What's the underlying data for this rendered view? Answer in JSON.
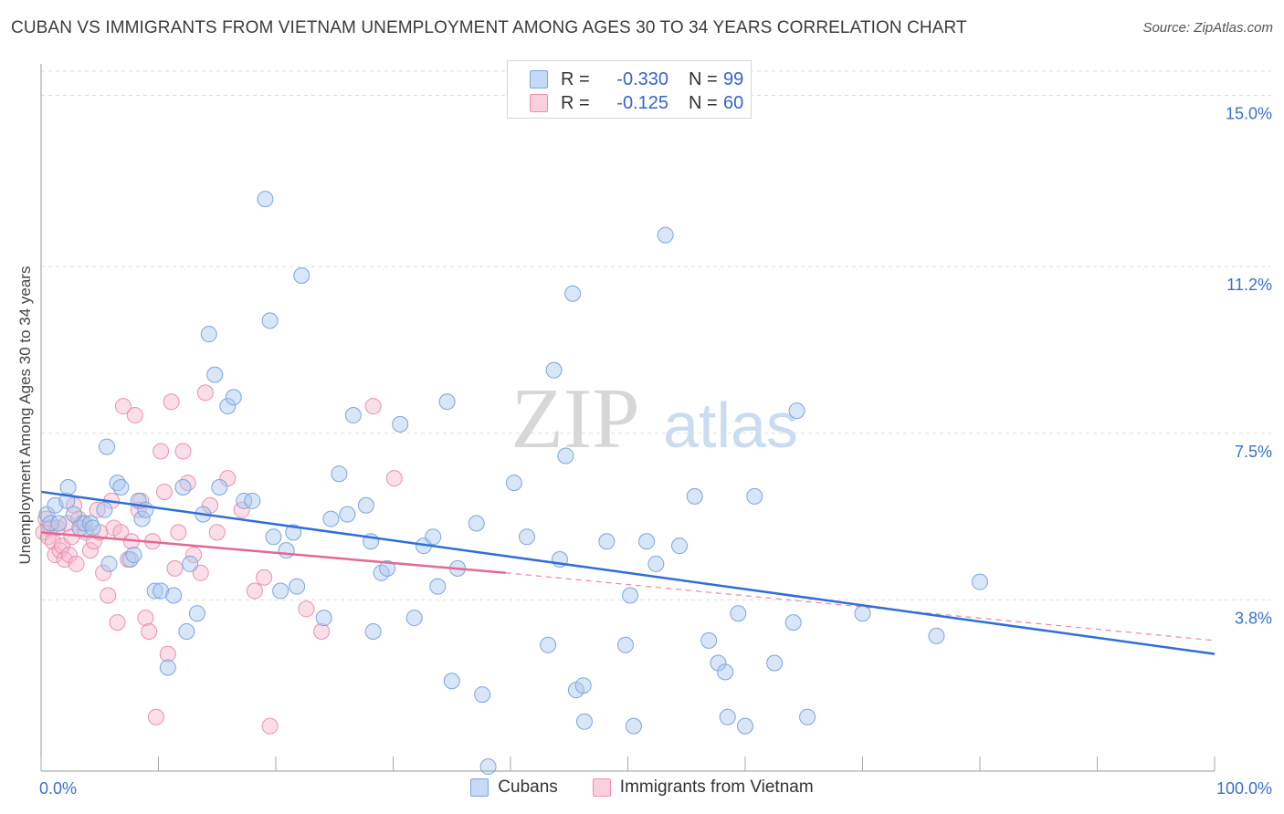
{
  "title": "CUBAN VS IMMIGRANTS FROM VIETNAM UNEMPLOYMENT AMONG AGES 30 TO 34 YEARS CORRELATION CHART",
  "source": "Source: ZipAtlas.com",
  "watermark": {
    "zip": "ZIP",
    "atlas": "atlas"
  },
  "legend": {
    "rows": [
      {
        "r_label": "R =",
        "r_value": "-0.330",
        "n_label": "N =",
        "n_value": "99"
      },
      {
        "r_label": "R =",
        "r_value": "-0.125",
        "n_label": "N =",
        "n_value": "60"
      }
    ]
  },
  "bottom_legend": {
    "cubans": "Cubans",
    "vietnam": "Immigrants from Vietnam"
  },
  "colors": {
    "cuban_fill": "#a8c8f0",
    "cuban_stroke": "#7aa6e0",
    "cuban_line": "#2f6fd6",
    "vietnam_fill": "#f7b8cc",
    "vietnam_stroke": "#ee8fae",
    "vietnam_line": "#e4698f",
    "axis_label": "#3a6fcf",
    "grid": "#dddddd"
  },
  "chart_data": {
    "type": "scatter",
    "title": "CUBAN VS IMMIGRANTS FROM VIETNAM UNEMPLOYMENT AMONG AGES 30 TO 34 YEARS CORRELATION CHART",
    "xlabel": "",
    "ylabel": "Unemployment Among Ages 30 to 34 years",
    "xlim": [
      0,
      100
    ],
    "ylim": [
      0,
      15.7
    ],
    "x_tick_labels": [
      "0.0%",
      "100.0%"
    ],
    "y_ticks": [
      3.8,
      7.5,
      11.2,
      15.0
    ],
    "y_tick_labels": [
      "3.8%",
      "7.5%",
      "11.2%",
      "15.0%"
    ],
    "grid": true,
    "legend_position": "top-center",
    "series": [
      {
        "name": "Cubans",
        "r": -0.33,
        "n": 99,
        "trend": {
          "x": [
            0,
            100
          ],
          "y": [
            6.2,
            2.6
          ]
        },
        "points": [
          [
            0.5,
            5.7
          ],
          [
            0.8,
            5.5
          ],
          [
            1.2,
            5.9
          ],
          [
            1.5,
            5.5
          ],
          [
            2.2,
            6.0
          ],
          [
            2.3,
            6.3
          ],
          [
            2.8,
            5.7
          ],
          [
            3.3,
            5.4
          ],
          [
            3.7,
            5.5
          ],
          [
            4.2,
            5.5
          ],
          [
            4.4,
            5.4
          ],
          [
            5.4,
            5.8
          ],
          [
            5.6,
            7.2
          ],
          [
            5.8,
            4.6
          ],
          [
            6.5,
            6.4
          ],
          [
            6.8,
            6.3
          ],
          [
            7.6,
            4.7
          ],
          [
            7.9,
            4.8
          ],
          [
            8.3,
            6.0
          ],
          [
            8.6,
            5.6
          ],
          [
            8.9,
            5.8
          ],
          [
            9.7,
            4.0
          ],
          [
            10.2,
            4.0
          ],
          [
            10.8,
            2.3
          ],
          [
            11.3,
            3.9
          ],
          [
            12.1,
            6.3
          ],
          [
            12.4,
            3.1
          ],
          [
            12.7,
            4.6
          ],
          [
            13.3,
            3.5
          ],
          [
            13.8,
            5.7
          ],
          [
            14.3,
            9.7
          ],
          [
            14.8,
            8.8
          ],
          [
            15.2,
            6.3
          ],
          [
            15.9,
            8.1
          ],
          [
            16.4,
            8.3
          ],
          [
            17.3,
            6.0
          ],
          [
            18.0,
            6.0
          ],
          [
            19.1,
            12.7
          ],
          [
            19.5,
            10.0
          ],
          [
            19.8,
            5.2
          ],
          [
            20.4,
            4.0
          ],
          [
            20.9,
            4.9
          ],
          [
            21.5,
            5.3
          ],
          [
            21.8,
            4.1
          ],
          [
            22.2,
            11.0
          ],
          [
            24.1,
            3.4
          ],
          [
            24.7,
            5.6
          ],
          [
            25.4,
            6.6
          ],
          [
            26.1,
            5.7
          ],
          [
            26.6,
            7.9
          ],
          [
            27.7,
            5.9
          ],
          [
            28.1,
            5.1
          ],
          [
            28.3,
            3.1
          ],
          [
            29.0,
            4.4
          ],
          [
            29.5,
            4.5
          ],
          [
            30.6,
            7.7
          ],
          [
            31.8,
            3.4
          ],
          [
            32.6,
            5.0
          ],
          [
            33.4,
            5.2
          ],
          [
            33.8,
            4.1
          ],
          [
            34.6,
            8.2
          ],
          [
            35.0,
            2.0
          ],
          [
            35.5,
            4.5
          ],
          [
            37.1,
            5.5
          ],
          [
            37.6,
            1.7
          ],
          [
            38.1,
            0.1
          ],
          [
            40.3,
            6.4
          ],
          [
            41.4,
            5.2
          ],
          [
            43.2,
            2.8
          ],
          [
            43.7,
            8.9
          ],
          [
            44.2,
            4.7
          ],
          [
            44.7,
            7.0
          ],
          [
            45.3,
            10.6
          ],
          [
            45.6,
            1.8
          ],
          [
            46.2,
            1.9
          ],
          [
            46.3,
            1.1
          ],
          [
            48.2,
            5.1
          ],
          [
            49.8,
            2.8
          ],
          [
            50.2,
            3.9
          ],
          [
            50.5,
            1.0
          ],
          [
            51.6,
            5.1
          ],
          [
            52.4,
            4.6
          ],
          [
            53.2,
            11.9
          ],
          [
            54.4,
            5.0
          ],
          [
            55.7,
            6.1
          ],
          [
            56.9,
            2.9
          ],
          [
            57.7,
            2.4
          ],
          [
            58.3,
            2.2
          ],
          [
            58.5,
            1.2
          ],
          [
            59.4,
            3.5
          ],
          [
            60.0,
            1.0
          ],
          [
            60.8,
            6.1
          ],
          [
            62.5,
            2.4
          ],
          [
            64.1,
            3.3
          ],
          [
            64.4,
            8.0
          ],
          [
            65.3,
            1.2
          ],
          [
            70.0,
            3.5
          ],
          [
            76.3,
            3.0
          ],
          [
            80.0,
            4.2
          ]
        ]
      },
      {
        "name": "Immigrants from Vietnam",
        "r": -0.125,
        "n": 60,
        "trend": {
          "x": [
            0,
            39.6
          ],
          "y": [
            5.3,
            4.4
          ]
        },
        "trend_dashed": {
          "x": [
            39.6,
            100
          ],
          "y": [
            4.4,
            2.9
          ]
        },
        "points": [
          [
            0.2,
            5.3
          ],
          [
            0.4,
            5.6
          ],
          [
            0.6,
            5.2
          ],
          [
            0.8,
            5.4
          ],
          [
            1.0,
            5.1
          ],
          [
            1.2,
            4.8
          ],
          [
            1.4,
            5.4
          ],
          [
            1.6,
            4.9
          ],
          [
            1.8,
            5.0
          ],
          [
            2.0,
            4.7
          ],
          [
            2.2,
            5.5
          ],
          [
            2.4,
            4.8
          ],
          [
            2.6,
            5.2
          ],
          [
            2.8,
            5.9
          ],
          [
            3.0,
            4.6
          ],
          [
            3.2,
            5.6
          ],
          [
            3.5,
            5.5
          ],
          [
            3.8,
            5.3
          ],
          [
            4.2,
            4.9
          ],
          [
            4.5,
            5.1
          ],
          [
            4.8,
            5.8
          ],
          [
            5.0,
            5.3
          ],
          [
            5.3,
            4.4
          ],
          [
            5.7,
            3.9
          ],
          [
            6.0,
            6.0
          ],
          [
            6.2,
            5.4
          ],
          [
            6.5,
            3.3
          ],
          [
            6.8,
            5.3
          ],
          [
            7.0,
            8.1
          ],
          [
            7.4,
            4.7
          ],
          [
            7.7,
            5.1
          ],
          [
            8.0,
            7.9
          ],
          [
            8.3,
            5.8
          ],
          [
            8.5,
            6.0
          ],
          [
            8.9,
            3.4
          ],
          [
            9.2,
            3.1
          ],
          [
            9.5,
            5.1
          ],
          [
            9.8,
            1.2
          ],
          [
            10.2,
            7.1
          ],
          [
            10.5,
            6.2
          ],
          [
            10.8,
            2.6
          ],
          [
            11.1,
            8.2
          ],
          [
            11.4,
            4.5
          ],
          [
            11.7,
            5.3
          ],
          [
            12.1,
            7.1
          ],
          [
            12.5,
            6.4
          ],
          [
            13.0,
            4.8
          ],
          [
            13.6,
            4.4
          ],
          [
            14.0,
            8.4
          ],
          [
            14.4,
            5.9
          ],
          [
            15.0,
            5.3
          ],
          [
            15.9,
            6.5
          ],
          [
            17.1,
            5.8
          ],
          [
            18.2,
            4.0
          ],
          [
            19.0,
            4.3
          ],
          [
            19.5,
            1.0
          ],
          [
            22.6,
            3.6
          ],
          [
            23.9,
            3.1
          ],
          [
            28.3,
            8.1
          ],
          [
            30.1,
            6.5
          ]
        ]
      }
    ]
  }
}
